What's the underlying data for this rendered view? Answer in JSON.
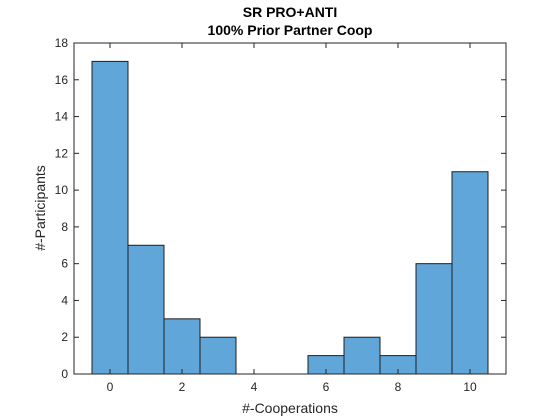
{
  "chart_data": {
    "type": "bar",
    "title": "SR PRO+ANTI",
    "subtitle": "100% Prior Partner Coop",
    "xlabel": "#-Cooperations",
    "ylabel": "#-Participants",
    "x": [
      0,
      1,
      2,
      3,
      4,
      5,
      6,
      7,
      8,
      9,
      10
    ],
    "values": [
      17,
      7,
      3,
      2,
      0,
      0,
      1,
      2,
      1,
      6,
      11
    ],
    "xlim": [
      -1,
      11
    ],
    "ylim": [
      0,
      18
    ],
    "xticks": [
      0,
      2,
      4,
      6,
      8,
      10
    ],
    "yticks": [
      0,
      2,
      4,
      6,
      8,
      10,
      12,
      14,
      16,
      18
    ],
    "grid": false,
    "bar_color": "#61a6d9",
    "edge_color": "#1f1f1f"
  }
}
